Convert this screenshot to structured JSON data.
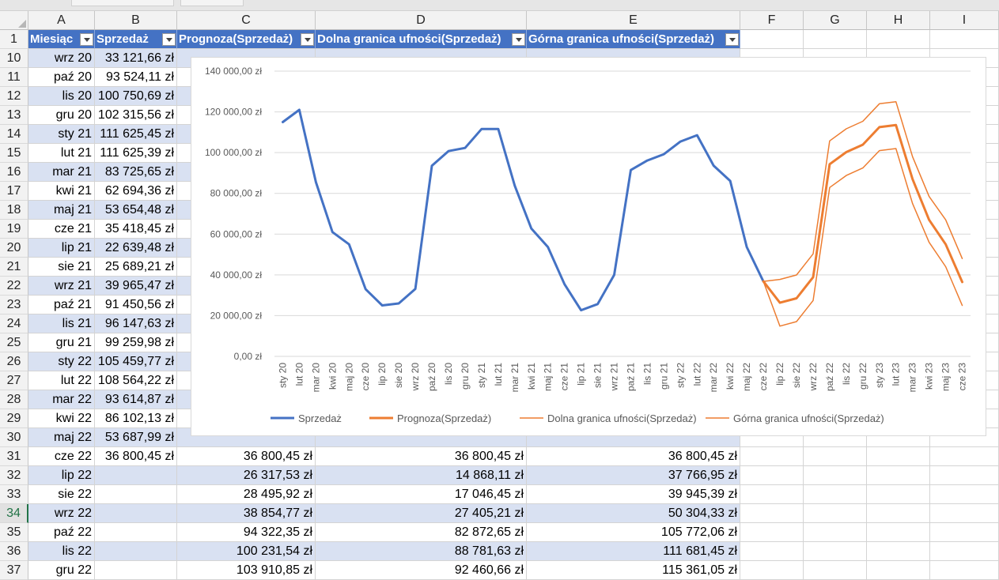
{
  "columns": [
    "A",
    "B",
    "C",
    "D",
    "E",
    "F",
    "G",
    "H",
    "I"
  ],
  "header_row": {
    "row_number": "1",
    "cells": [
      "Miesiąc",
      "Sprzedaż",
      "Prognoza(Sprzedaż)",
      "Dolna granica ufności(Sprzedaż)",
      "Górna granica ufności(Sprzedaż)"
    ]
  },
  "rows": [
    {
      "n": "10",
      "a": "wrz 20",
      "b": "33 121,66 zł",
      "c": "",
      "d": "",
      "e": ""
    },
    {
      "n": "11",
      "a": "paź 20",
      "b": "93 524,11 zł",
      "c": "",
      "d": "",
      "e": ""
    },
    {
      "n": "12",
      "a": "lis 20",
      "b": "100 750,69 zł",
      "c": "",
      "d": "",
      "e": ""
    },
    {
      "n": "13",
      "a": "gru 20",
      "b": "102 315,56 zł",
      "c": "",
      "d": "",
      "e": ""
    },
    {
      "n": "14",
      "a": "sty 21",
      "b": "111 625,45 zł",
      "c": "",
      "d": "",
      "e": ""
    },
    {
      "n": "15",
      "a": "lut 21",
      "b": "111 625,39 zł",
      "c": "",
      "d": "",
      "e": ""
    },
    {
      "n": "16",
      "a": "mar 21",
      "b": "83 725,65 zł",
      "c": "",
      "d": "",
      "e": ""
    },
    {
      "n": "17",
      "a": "kwi 21",
      "b": "62 694,36 zł",
      "c": "",
      "d": "",
      "e": ""
    },
    {
      "n": "18",
      "a": "maj 21",
      "b": "53 654,48 zł",
      "c": "",
      "d": "",
      "e": ""
    },
    {
      "n": "19",
      "a": "cze 21",
      "b": "35 418,45 zł",
      "c": "",
      "d": "",
      "e": ""
    },
    {
      "n": "20",
      "a": "lip 21",
      "b": "22 639,48 zł",
      "c": "",
      "d": "",
      "e": ""
    },
    {
      "n": "21",
      "a": "sie 21",
      "b": "25 689,21 zł",
      "c": "",
      "d": "",
      "e": ""
    },
    {
      "n": "22",
      "a": "wrz 21",
      "b": "39 965,47 zł",
      "c": "",
      "d": "",
      "e": ""
    },
    {
      "n": "23",
      "a": "paź 21",
      "b": "91 450,56 zł",
      "c": "",
      "d": "",
      "e": ""
    },
    {
      "n": "24",
      "a": "lis 21",
      "b": "96 147,63 zł",
      "c": "",
      "d": "",
      "e": ""
    },
    {
      "n": "25",
      "a": "gru 21",
      "b": "99 259,98 zł",
      "c": "",
      "d": "",
      "e": ""
    },
    {
      "n": "26",
      "a": "sty 22",
      "b": "105 459,77 zł",
      "c": "",
      "d": "",
      "e": ""
    },
    {
      "n": "27",
      "a": "lut 22",
      "b": "108 564,22 zł",
      "c": "",
      "d": "",
      "e": ""
    },
    {
      "n": "28",
      "a": "mar 22",
      "b": "93 614,87 zł",
      "c": "",
      "d": "",
      "e": ""
    },
    {
      "n": "29",
      "a": "kwi 22",
      "b": "86 102,13 zł",
      "c": "",
      "d": "",
      "e": ""
    },
    {
      "n": "30",
      "a": "maj 22",
      "b": "53 687,99 zł",
      "c": "",
      "d": "",
      "e": ""
    },
    {
      "n": "31",
      "a": "cze 22",
      "b": "36 800,45 zł",
      "c": "36 800,45 zł",
      "d": "36 800,45 zł",
      "e": "36 800,45 zł"
    },
    {
      "n": "32",
      "a": "lip 22",
      "b": "",
      "c": "26 317,53 zł",
      "d": "14 868,11 zł",
      "e": "37 766,95 zł"
    },
    {
      "n": "33",
      "a": "sie 22",
      "b": "",
      "c": "28 495,92 zł",
      "d": "17 046,45 zł",
      "e": "39 945,39 zł"
    },
    {
      "n": "34",
      "a": "wrz 22",
      "b": "",
      "c": "38 854,77 zł",
      "d": "27 405,21 zł",
      "e": "50 304,33 zł"
    },
    {
      "n": "35",
      "a": "paź 22",
      "b": "",
      "c": "94 322,35 zł",
      "d": "82 872,65 zł",
      "e": "105 772,06 zł"
    },
    {
      "n": "36",
      "a": "lis 22",
      "b": "",
      "c": "100 231,54 zł",
      "d": "88 781,63 zł",
      "e": "111 681,45 zł"
    },
    {
      "n": "37",
      "a": "gru 22",
      "b": "",
      "c": "103 910,85 zł",
      "d": "92 460,66 zł",
      "e": "115 361,05 zł"
    }
  ],
  "selected_row": "34",
  "colors": {
    "header_fill": "#4472c4",
    "band_fill": "#d9e1f2",
    "sales_line": "#4472c4",
    "forecast_line": "#ed7d31",
    "selection": "#217346"
  },
  "chart_data": {
    "type": "line",
    "categories": [
      "sty 20",
      "lut 20",
      "mar 20",
      "kwi 20",
      "maj 20",
      "cze 20",
      "lip 20",
      "sie 20",
      "wrz 20",
      "paź 20",
      "lis 20",
      "gru 20",
      "sty 21",
      "lut 21",
      "mar 21",
      "kwi 21",
      "maj 21",
      "cze 21",
      "lip 21",
      "sie 21",
      "wrz 21",
      "paź 21",
      "lis 21",
      "gru 21",
      "sty 22",
      "lut 22",
      "mar 22",
      "kwi 22",
      "maj 22",
      "cze 22",
      "lip 22",
      "sie 22",
      "wrz 22",
      "paź 22",
      "lis 22",
      "gru 22",
      "sty 23",
      "lut 23",
      "mar 23",
      "kwi 23",
      "maj 23",
      "cze 23"
    ],
    "ylim": [
      0,
      140000
    ],
    "yticks": [
      "0,00 zł",
      "20 000,00 zł",
      "40 000,00 zł",
      "60 000,00 zł",
      "80 000,00 zł",
      "100 000,00 zł",
      "120 000,00 zł",
      "140 000,00 zł"
    ],
    "grid": true,
    "legend_position": "bottom",
    "series": [
      {
        "name": "Sprzedaż",
        "color": "#4472c4",
        "width": 3,
        "values": [
          115000,
          121000,
          85500,
          61000,
          55000,
          33000,
          25000,
          26000,
          33121.66,
          93524.11,
          100750.69,
          102315.56,
          111625.45,
          111625.39,
          83725.65,
          62694.36,
          53654.48,
          35418.45,
          22639.48,
          25689.21,
          39965.47,
          91450.56,
          96147.63,
          99259.98,
          105459.77,
          108564.22,
          93614.87,
          86102.13,
          53687.99,
          36800.45,
          null,
          null,
          null,
          null,
          null,
          null,
          null,
          null,
          null,
          null,
          null,
          null
        ]
      },
      {
        "name": "Prognoza(Sprzedaż)",
        "color": "#ed7d31",
        "width": 3,
        "values": [
          null,
          null,
          null,
          null,
          null,
          null,
          null,
          null,
          null,
          null,
          null,
          null,
          null,
          null,
          null,
          null,
          null,
          null,
          null,
          null,
          null,
          null,
          null,
          null,
          null,
          null,
          null,
          null,
          null,
          36800.45,
          26317.53,
          28495.92,
          38854.77,
          94322.35,
          100231.54,
          103910.85,
          112500,
          113500,
          87000,
          67000,
          55000,
          36500
        ]
      },
      {
        "name": "Dolna granica ufności(Sprzedaż)",
        "color": "#ed7d31",
        "width": 1.5,
        "values": [
          null,
          null,
          null,
          null,
          null,
          null,
          null,
          null,
          null,
          null,
          null,
          null,
          null,
          null,
          null,
          null,
          null,
          null,
          null,
          null,
          null,
          null,
          null,
          null,
          null,
          null,
          null,
          null,
          null,
          36800.45,
          14868.11,
          17046.45,
          27405.21,
          82872.65,
          88781.63,
          92460.66,
          101000,
          102000,
          75000,
          56000,
          44000,
          25000
        ]
      },
      {
        "name": "Górna granica ufności(Sprzedaż)",
        "color": "#ed7d31",
        "width": 1.5,
        "values": [
          null,
          null,
          null,
          null,
          null,
          null,
          null,
          null,
          null,
          null,
          null,
          null,
          null,
          null,
          null,
          null,
          null,
          null,
          null,
          null,
          null,
          null,
          null,
          null,
          null,
          null,
          null,
          null,
          null,
          36800.45,
          37766.95,
          39945.39,
          50304.33,
          105772.06,
          111681.45,
          115361.05,
          124000,
          125000,
          98000,
          78500,
          67000,
          48000
        ]
      }
    ]
  }
}
